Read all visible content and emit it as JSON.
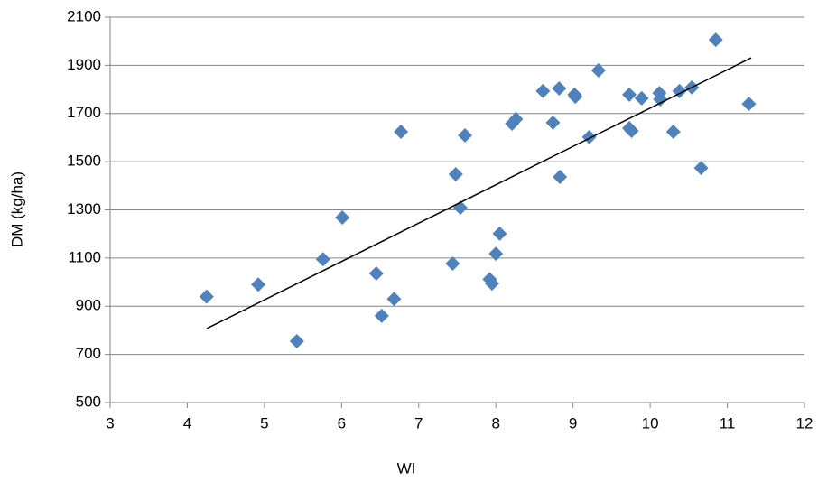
{
  "chart_data": {
    "type": "scatter",
    "x_label": "WI",
    "y_label": "DM (kg/ha)",
    "x": [
      4.25,
      4.92,
      5.42,
      5.76,
      6.01,
      6.45,
      6.52,
      6.68,
      6.77,
      7.44,
      7.48,
      7.54,
      7.6,
      7.92,
      7.95,
      8.0,
      8.05,
      8.21,
      8.26,
      8.61,
      8.74,
      8.82,
      8.83,
      9.02,
      9.03,
      9.21,
      9.33,
      9.73,
      9.73,
      9.76,
      9.89,
      10.12,
      10.13,
      10.3,
      10.38,
      10.54,
      10.66,
      10.85,
      11.28
    ],
    "values": [
      940,
      990,
      755,
      1095,
      1268,
      1036,
      860,
      930,
      1624,
      1077,
      1448,
      1309,
      1609,
      1012,
      994,
      1118,
      1201,
      1658,
      1677,
      1793,
      1662,
      1804,
      1437,
      1778,
      1770,
      1602,
      1879,
      1778,
      1639,
      1628,
      1763,
      1785,
      1759,
      1624,
      1793,
      1808,
      1474,
      2006,
      1740
    ],
    "color": "#4f81bd",
    "trendline": {
      "x": [
        4.25,
        11.31
      ],
      "y": [
        807,
        1931
      ],
      "color": "#000000"
    },
    "xlim": [
      3,
      12
    ],
    "xticks": [
      3,
      4,
      5,
      6,
      7,
      8,
      9,
      10,
      11,
      12
    ],
    "ylim": [
      500,
      2100
    ],
    "yticks": [
      500,
      700,
      900,
      1100,
      1300,
      1500,
      1700,
      1900,
      2100
    ],
    "grid": true
  }
}
